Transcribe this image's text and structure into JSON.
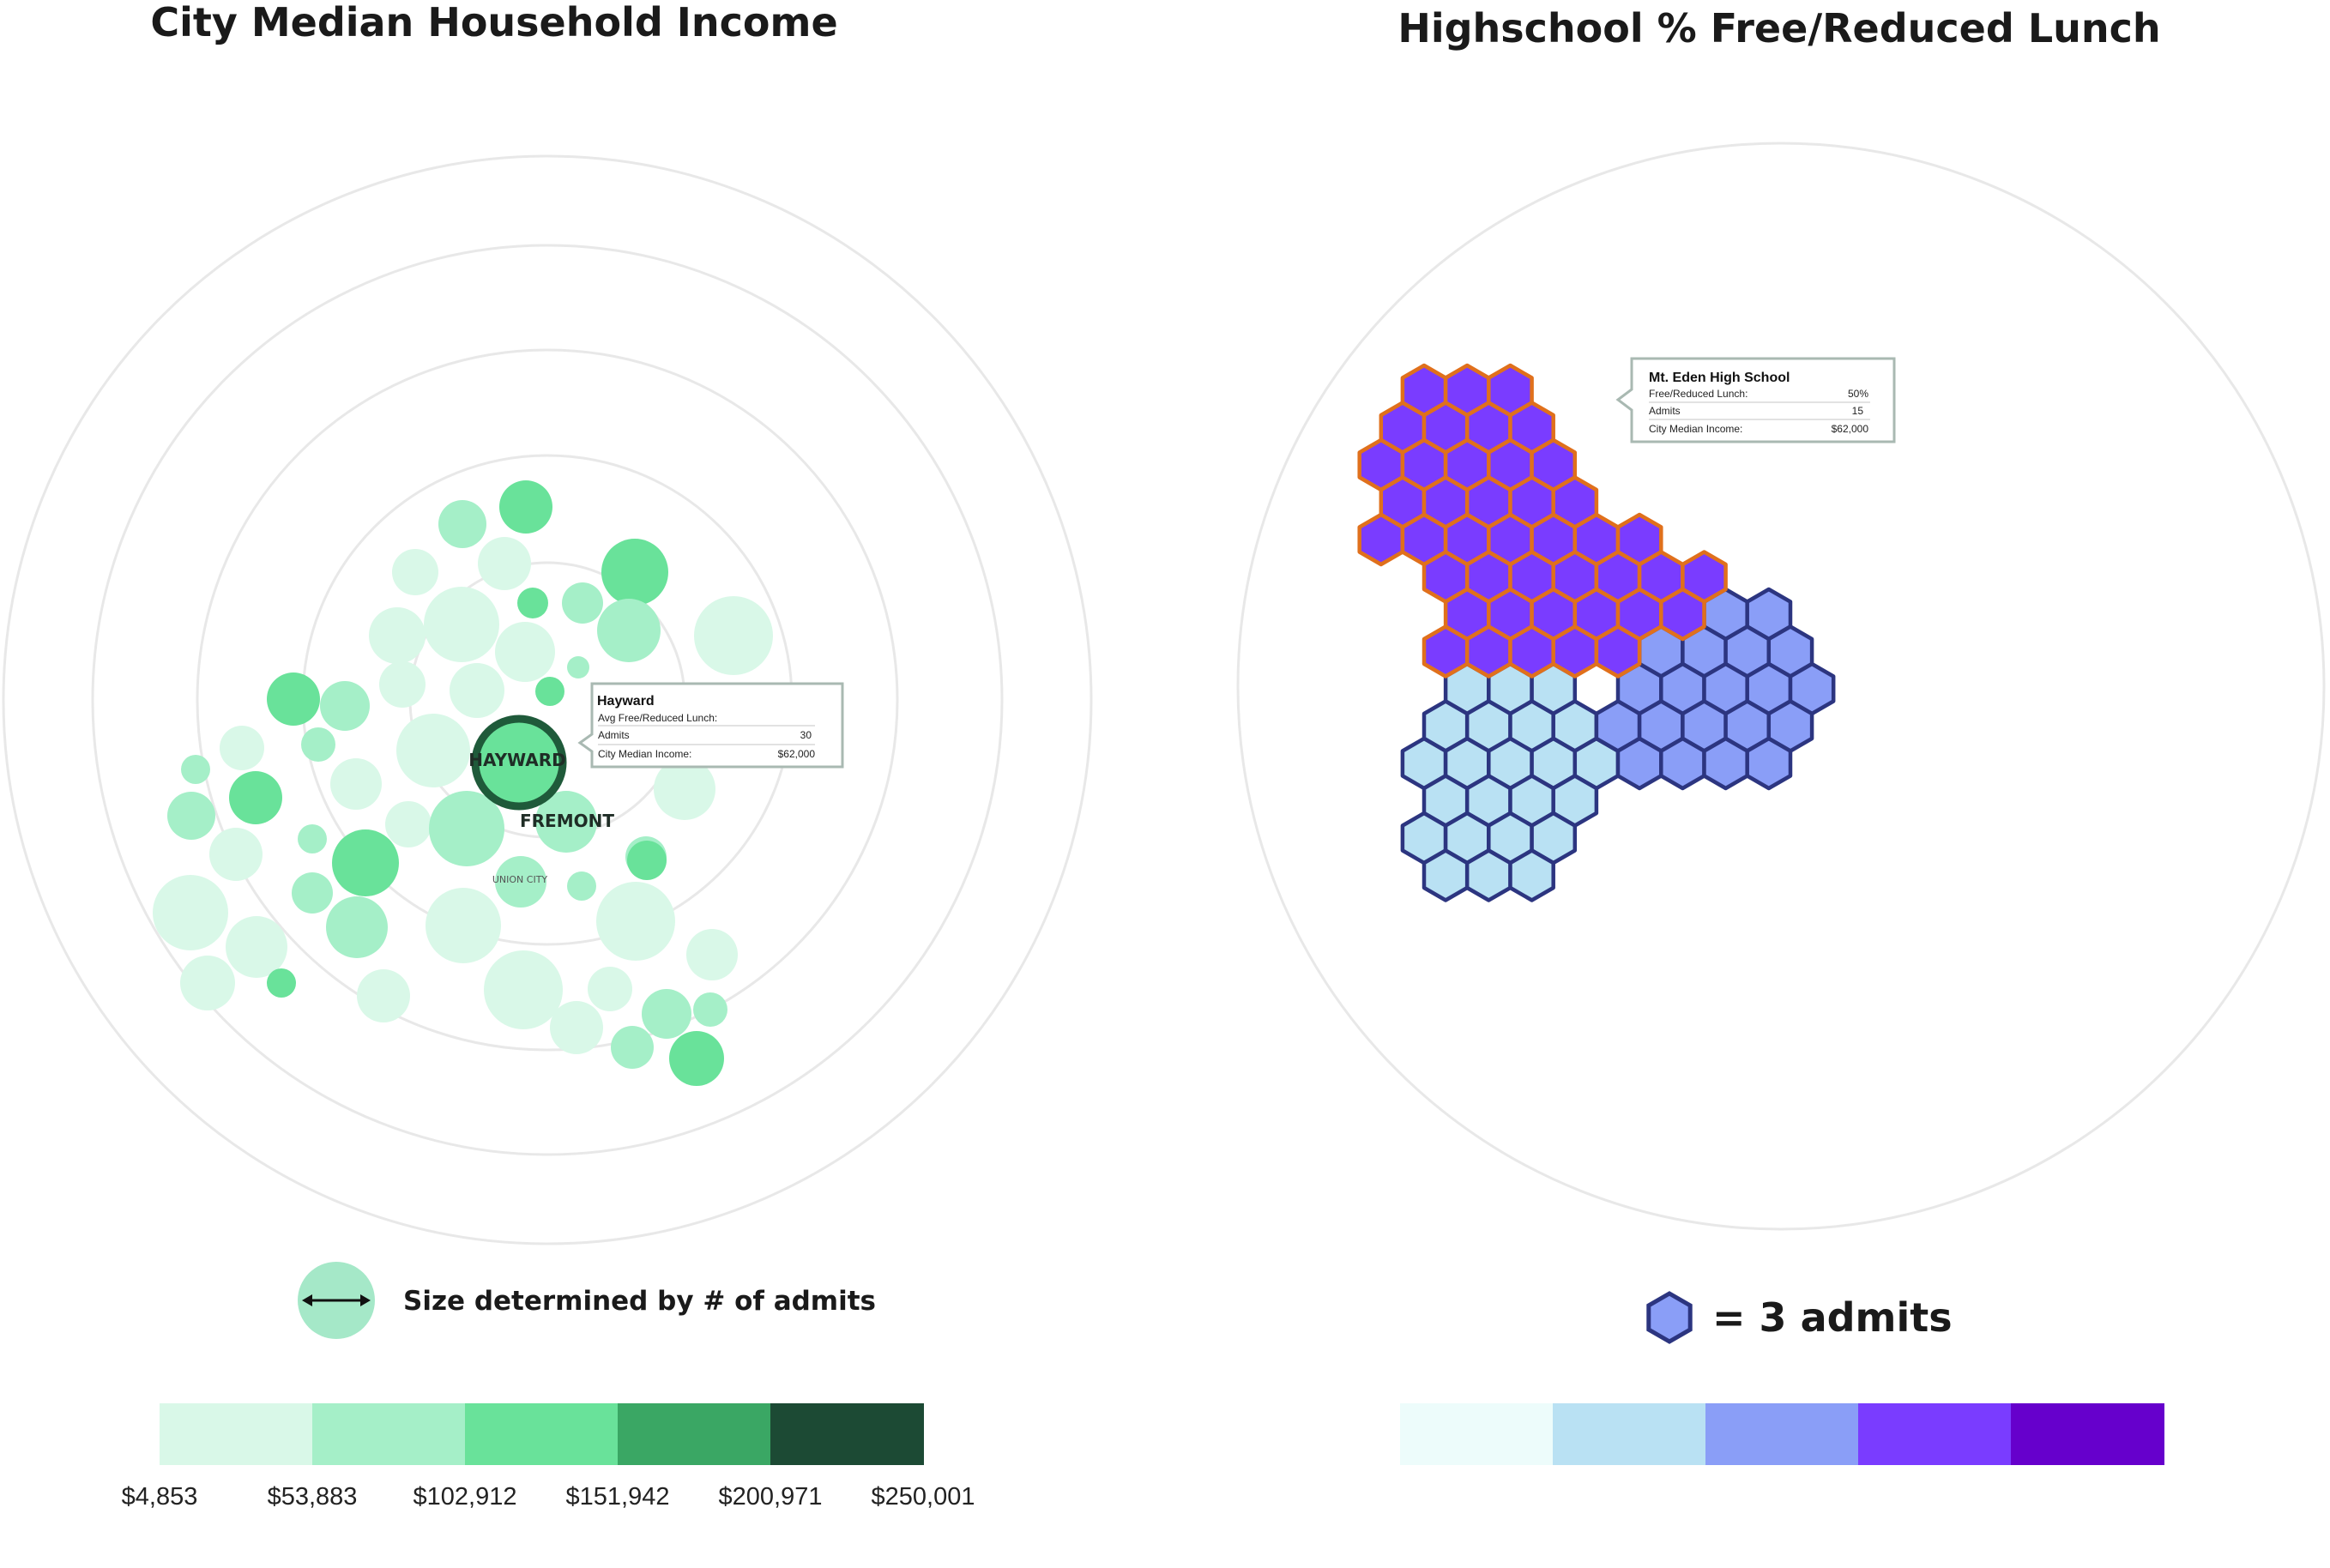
{
  "left_panel": {
    "title": "City Median Household Income",
    "size_legend_label": "Size determined by # of admits",
    "tooltip": {
      "title": "Hayward",
      "rows": [
        {
          "label": "Avg Free/Reduced Lunch:",
          "value": ""
        },
        {
          "label": "Admits",
          "value": "30"
        },
        {
          "label": "City Median Income:",
          "value": "$62,000"
        }
      ]
    },
    "city_labels": [
      "HAYWARD",
      "FREMONT",
      "UNION CITY"
    ]
  },
  "right_panel": {
    "title": "Highschool %  Free/Reduced Lunch",
    "hex_legend_label": "= 3 admits",
    "tooltip": {
      "title": "Mt. Eden High School",
      "rows": [
        {
          "label": "Free/Reduced Lunch:",
          "value": "50%"
        },
        {
          "label": "Admits",
          "value": "15"
        },
        {
          "label": "City Median Income:",
          "value": "$62,000"
        }
      ]
    }
  },
  "colors": {
    "green_scale": [
      "#d9f8e8",
      "#a5efc8",
      "#69e29a",
      "#3aa764",
      "#1c4a34"
    ],
    "purple_scale": [
      "#edfcfb",
      "#b9e1f3",
      "#8a9ef7",
      "#7a3cff",
      "#6600cc"
    ],
    "highlight_stroke": "#e0701c",
    "hex_stroke": "#2c3580",
    "ring": "#e8e8e8"
  },
  "chart_data": [
    {
      "type": "scatter",
      "subtype": "bubble",
      "title": "City Median Household Income",
      "color_scale_ticks": [
        "$4,853",
        "$53,883",
        "$102,912",
        "$151,942",
        "$200,971",
        "$250,001"
      ],
      "color_encoding": "City median household income",
      "size_encoding": "# of admits",
      "highlighted": "HAYWARD",
      "city_labels": [
        "HAYWARD",
        "FREMONT",
        "UNION CITY"
      ]
    },
    {
      "type": "heatmap",
      "subtype": "hexbin",
      "title": "Highschool %  Free/Reduced Lunch",
      "unit": "3 admits per hexagon",
      "groups": [
        {
          "name": "Mt. Eden High School",
          "free_reduced_lunch": "50%",
          "admits": 15,
          "color_bin": 4,
          "highlighted": true
        },
        {
          "color_bin": 3
        },
        {
          "color_bin": 2
        }
      ]
    }
  ]
}
